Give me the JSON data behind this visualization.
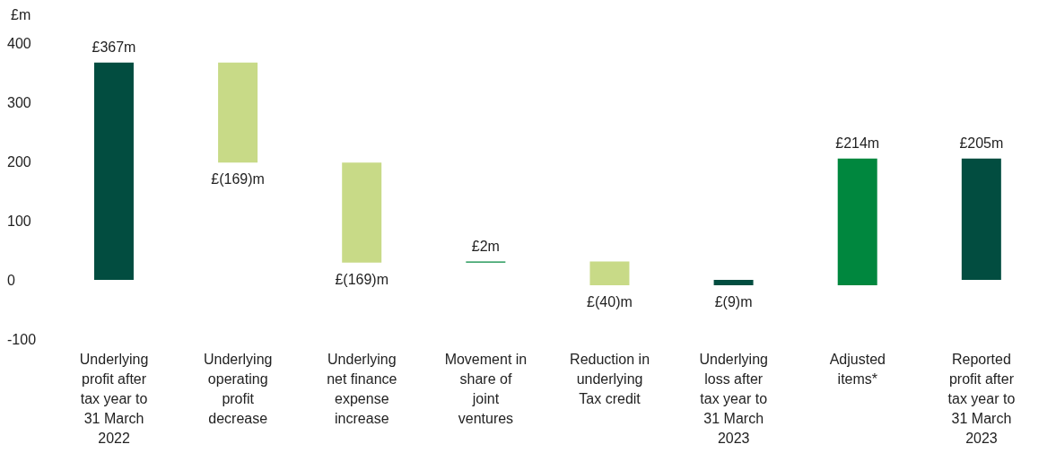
{
  "chart_data": {
    "type": "bar",
    "ylabel": "£m",
    "categories": [
      "Underlying profit after tax year to 31 March 2022",
      "Underlying operating profit decrease",
      "Underlying net finance expense increase",
      "Movement in share of joint ventures",
      "Reduction in underlying Tax credit",
      "Underlying loss after tax year to 31 March 2023",
      "Adjusted items*",
      "Reported profit after tax year to 31 March 2023"
    ],
    "values": [
      367,
      -169,
      -169,
      2,
      -40,
      -9,
      214,
      205
    ],
    "base": [
      0,
      367,
      198,
      29,
      31,
      0,
      -9,
      0
    ],
    "colors": [
      "#024d40",
      "#c8da87",
      "#c8da87",
      "#00873e",
      "#c8da87",
      "#024d40",
      "#00873e",
      "#024d40"
    ],
    "value_labels": [
      "£367m",
      "£(169)m",
      "£(169)m",
      "£2m",
      "£(40)m",
      "£(9)m",
      "£214m",
      "£205m"
    ],
    "ylim": [
      -100,
      400
    ],
    "yticks": [
      -100,
      0,
      100,
      200,
      300,
      400
    ]
  }
}
